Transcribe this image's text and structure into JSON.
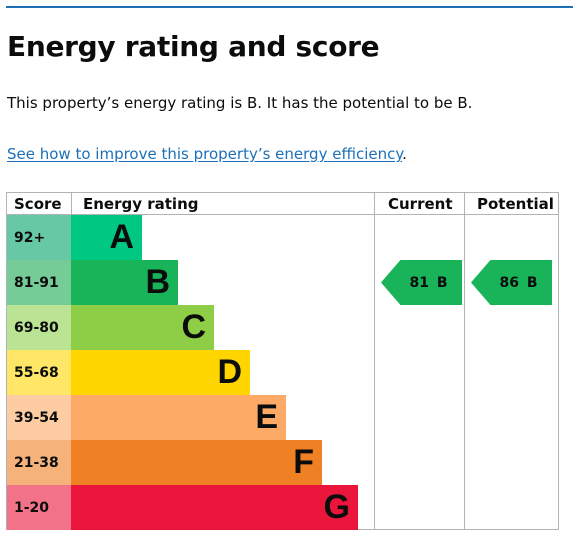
{
  "page": {
    "title": "Energy rating and score",
    "intro": "This property’s energy rating is B. It has the potential to be B.",
    "link_text": "See how to improve this property’s energy efficiency",
    "link_suffix": "."
  },
  "chart_data": {
    "type": "table",
    "headers": {
      "score": "Score",
      "rating": "Energy rating",
      "current": "Current",
      "potential": "Potential"
    },
    "bands": [
      {
        "score": "92+",
        "letter": "A",
        "color": "#00c781",
        "score_bg": "#67c8a5"
      },
      {
        "score": "81-91",
        "letter": "B",
        "color": "#19b459",
        "score_bg": "#75cc97"
      },
      {
        "score": "69-80",
        "letter": "C",
        "color": "#8dce46",
        "score_bg": "#bbe394"
      },
      {
        "score": "55-68",
        "letter": "D",
        "color": "#ffd500",
        "score_bg": "#ffe666"
      },
      {
        "score": "39-54",
        "letter": "E",
        "color": "#fcaa65",
        "score_bg": "#fdcca3"
      },
      {
        "score": "21-38",
        "letter": "F",
        "color": "#ef8023",
        "score_bg": "#f5b37b"
      },
      {
        "score": "1-20",
        "letter": "G",
        "color": "#e9153b",
        "score_bg": "#f27389"
      }
    ],
    "current": {
      "value": 81,
      "band": "B",
      "label": "81 B"
    },
    "potential": {
      "value": 86,
      "band": "B",
      "label": "86 B"
    }
  }
}
